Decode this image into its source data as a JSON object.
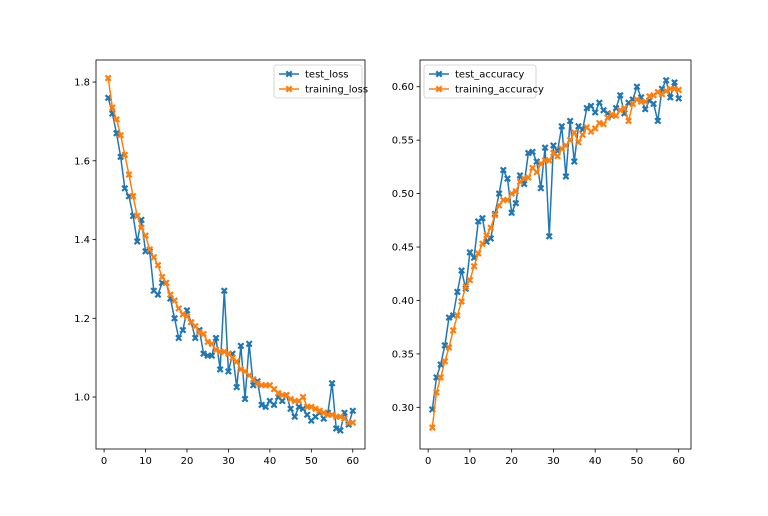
{
  "chart_data": [
    {
      "type": "line",
      "title": "",
      "xlabel": "",
      "ylabel": "",
      "xlim": [
        -1.95,
        62.95
      ],
      "ylim": [
        0.868,
        1.856
      ],
      "xticks": [
        0,
        10,
        20,
        30,
        40,
        50,
        60
      ],
      "yticks": [
        1.0,
        1.2,
        1.4,
        1.6,
        1.8
      ],
      "ytick_labels": [
        "1.0",
        "1.2",
        "1.4",
        "1.6",
        "1.8"
      ],
      "grid": false,
      "legend_placement": "upper-right",
      "x": [
        1,
        2,
        3,
        4,
        5,
        6,
        7,
        8,
        9,
        10,
        11,
        12,
        13,
        14,
        15,
        16,
        17,
        18,
        19,
        20,
        21,
        22,
        23,
        24,
        25,
        26,
        27,
        28,
        29,
        30,
        31,
        32,
        33,
        34,
        35,
        36,
        37,
        38,
        39,
        40,
        41,
        42,
        43,
        44,
        45,
        46,
        47,
        48,
        49,
        50,
        51,
        52,
        53,
        54,
        55,
        56,
        57,
        58,
        59,
        60
      ],
      "series": [
        {
          "name": "test_loss",
          "color": "#1f77b4",
          "values": [
            1.76,
            1.72,
            1.67,
            1.61,
            1.53,
            1.51,
            1.46,
            1.395,
            1.45,
            1.37,
            1.37,
            1.27,
            1.26,
            1.29,
            1.29,
            1.25,
            1.2,
            1.15,
            1.17,
            1.22,
            1.19,
            1.15,
            1.17,
            1.11,
            1.105,
            1.105,
            1.15,
            1.07,
            1.27,
            1.065,
            1.11,
            1.025,
            1.13,
            0.995,
            1.135,
            1.03,
            1.04,
            0.98,
            0.975,
            0.99,
            0.98,
            1.0,
            0.99,
            1.005,
            0.97,
            0.95,
            0.975,
            0.97,
            0.955,
            0.94,
            0.95,
            0.96,
            0.945,
            0.96,
            1.035,
            0.92,
            0.915,
            0.96,
            0.93,
            0.965
          ]
        },
        {
          "name": "training_loss",
          "color": "#ff7f0e",
          "values": [
            1.81,
            1.735,
            1.705,
            1.665,
            1.615,
            1.565,
            1.51,
            1.46,
            1.43,
            1.41,
            1.375,
            1.355,
            1.335,
            1.305,
            1.29,
            1.26,
            1.245,
            1.225,
            1.21,
            1.205,
            1.19,
            1.18,
            1.165,
            1.16,
            1.14,
            1.135,
            1.12,
            1.115,
            1.115,
            1.11,
            1.1,
            1.09,
            1.07,
            1.065,
            1.055,
            1.045,
            1.035,
            1.03,
            1.03,
            1.03,
            1.02,
            1.01,
            1.005,
            1.005,
            0.995,
            0.99,
            0.99,
            1.0,
            0.975,
            0.975,
            0.97,
            0.965,
            0.96,
            0.955,
            0.955,
            0.95,
            0.95,
            0.945,
            0.935,
            0.935
          ]
        }
      ]
    },
    {
      "type": "line",
      "title": "",
      "xlabel": "",
      "ylabel": "",
      "xlim": [
        -1.95,
        62.95
      ],
      "ylim": [
        0.261,
        0.625
      ],
      "xticks": [
        0,
        10,
        20,
        30,
        40,
        50,
        60
      ],
      "yticks": [
        0.3,
        0.35,
        0.4,
        0.45,
        0.5,
        0.55,
        0.6
      ],
      "ytick_labels": [
        "0.30",
        "0.35",
        "0.40",
        "0.45",
        "0.50",
        "0.55",
        "0.60"
      ],
      "grid": false,
      "legend_placement": "upper-left",
      "x": [
        1,
        2,
        3,
        4,
        5,
        6,
        7,
        8,
        9,
        10,
        11,
        12,
        13,
        14,
        15,
        16,
        17,
        18,
        19,
        20,
        21,
        22,
        23,
        24,
        25,
        26,
        27,
        28,
        29,
        30,
        31,
        32,
        33,
        34,
        35,
        36,
        37,
        38,
        39,
        40,
        41,
        42,
        43,
        44,
        45,
        46,
        47,
        48,
        49,
        50,
        51,
        52,
        53,
        54,
        55,
        56,
        57,
        58,
        59,
        60
      ],
      "series": [
        {
          "name": "test_accuracy",
          "color": "#1f77b4",
          "values": [
            0.298,
            0.328,
            0.34,
            0.358,
            0.384,
            0.386,
            0.408,
            0.428,
            0.411,
            0.445,
            0.44,
            0.474,
            0.477,
            0.455,
            0.458,
            0.481,
            0.5,
            0.522,
            0.514,
            0.482,
            0.491,
            0.517,
            0.509,
            0.538,
            0.539,
            0.53,
            0.505,
            0.543,
            0.46,
            0.545,
            0.54,
            0.563,
            0.516,
            0.568,
            0.53,
            0.563,
            0.56,
            0.58,
            0.582,
            0.576,
            0.585,
            0.578,
            0.575,
            0.573,
            0.58,
            0.592,
            0.575,
            0.585,
            0.588,
            0.6,
            0.59,
            0.579,
            0.587,
            0.584,
            0.568,
            0.598,
            0.606,
            0.59,
            0.604,
            0.589
          ]
        },
        {
          "name": "training_accuracy",
          "color": "#ff7f0e",
          "values": [
            0.281,
            0.314,
            0.328,
            0.343,
            0.356,
            0.372,
            0.386,
            0.399,
            0.413,
            0.419,
            0.432,
            0.444,
            0.453,
            0.461,
            0.468,
            0.48,
            0.489,
            0.494,
            0.494,
            0.5,
            0.502,
            0.511,
            0.514,
            0.515,
            0.524,
            0.52,
            0.528,
            0.531,
            0.531,
            0.538,
            0.535,
            0.542,
            0.545,
            0.55,
            0.557,
            0.548,
            0.555,
            0.562,
            0.558,
            0.561,
            0.566,
            0.565,
            0.571,
            0.574,
            0.573,
            0.578,
            0.58,
            0.568,
            0.584,
            0.588,
            0.586,
            0.586,
            0.591,
            0.592,
            0.595,
            0.593,
            0.596,
            0.598,
            0.598,
            0.597
          ]
        }
      ]
    }
  ]
}
